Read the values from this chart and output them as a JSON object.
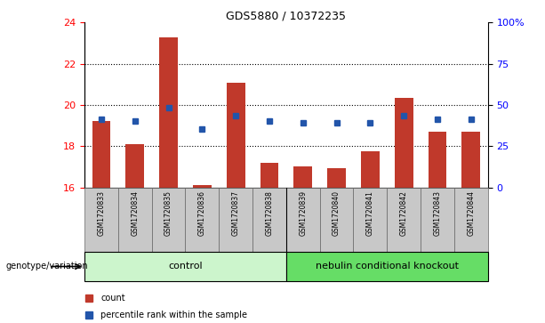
{
  "title": "GDS5880 / 10372235",
  "samples": [
    "GSM1720833",
    "GSM1720834",
    "GSM1720835",
    "GSM1720836",
    "GSM1720837",
    "GSM1720838",
    "GSM1720839",
    "GSM1720840",
    "GSM1720841",
    "GSM1720842",
    "GSM1720843",
    "GSM1720844"
  ],
  "bar_values": [
    19.2,
    18.1,
    23.3,
    16.1,
    21.1,
    17.2,
    17.0,
    16.95,
    17.75,
    20.35,
    18.7,
    18.7
  ],
  "percentile_values": [
    19.3,
    19.2,
    19.85,
    18.85,
    19.5,
    19.2,
    19.15,
    19.15,
    19.15,
    19.5,
    19.3,
    19.3
  ],
  "bar_bottom": 16,
  "ylim_left": [
    16,
    24
  ],
  "ylim_right": [
    0,
    100
  ],
  "yticks_left": [
    16,
    18,
    20,
    22,
    24
  ],
  "yticks_right": [
    0,
    25,
    50,
    75,
    100
  ],
  "bar_color": "#c0392b",
  "percentile_color": "#2255aa",
  "sample_bg": "#c8c8c8",
  "control_label": "control",
  "knockout_label": "nebulin conditional knockout",
  "genotype_label": "genotype/variation",
  "legend_count": "count",
  "legend_pct": "percentile rank within the sample",
  "n_control": 6,
  "n_knockout": 6,
  "grid_dotted_ticks": [
    18,
    20,
    22
  ],
  "right_ytick_labels": [
    "0",
    "25",
    "50",
    "75",
    "100%"
  ],
  "control_color": "#ccf5cc",
  "knockout_color": "#66dd66"
}
